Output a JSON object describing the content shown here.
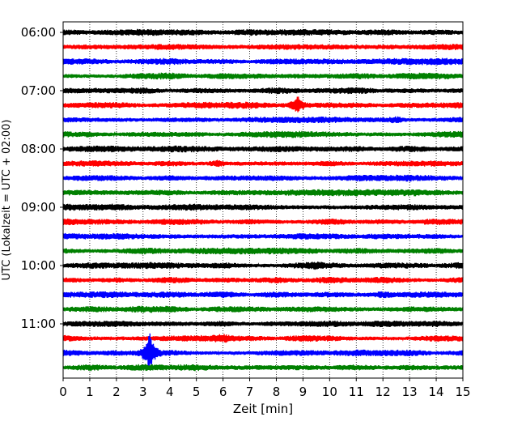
{
  "chart_data": {
    "type": "line",
    "title": "",
    "xlabel": "Zeit  [min]",
    "ylabel": "UTC (Lokalzeit = UTC + 02:00)",
    "xlim": [
      0,
      15
    ],
    "x_ticks": [
      "0",
      "1",
      "2",
      "3",
      "4",
      "5",
      "6",
      "7",
      "8",
      "9",
      "10",
      "11",
      "12",
      "13",
      "14",
      "15"
    ],
    "y_ticks": [
      "06:00",
      "07:00",
      "08:00",
      "09:00",
      "10:00",
      "11:00"
    ],
    "trace_start_times": [
      "06:00",
      "06:15",
      "06:30",
      "06:45",
      "07:00",
      "07:15",
      "07:30",
      "07:45",
      "08:00",
      "08:15",
      "08:30",
      "08:45",
      "09:00",
      "09:15",
      "09:30",
      "09:45",
      "10:00",
      "10:15",
      "10:30",
      "10:45",
      "11:00",
      "11:15",
      "11:30",
      "11:45"
    ],
    "trace_minutes_per_row": 15,
    "grid": "vertical dotted lines at each minute",
    "colors": [
      "#000000",
      "#ff0000",
      "#0000ff",
      "#008000"
    ],
    "events": [
      {
        "row": 5,
        "minute": 8.8,
        "amplitude": 2.2
      },
      {
        "row": 22,
        "minute": 3.25,
        "amplitude": 4.0
      },
      {
        "row": 9,
        "minute": 5.8,
        "amplitude": 1.6
      },
      {
        "row": 6,
        "minute": 12.5,
        "amplitude": 1.5
      },
      {
        "row": 7,
        "minute": 1.0,
        "amplitude": 1.3
      },
      {
        "row": 18,
        "minute": 12.0,
        "amplitude": 1.4
      },
      {
        "row": 21,
        "minute": 6.0,
        "amplitude": 1.4
      },
      {
        "row": 16,
        "minute": 5.0,
        "amplitude": 1.3
      },
      {
        "row": 16,
        "minute": 9.5,
        "amplitude": 1.4
      }
    ]
  }
}
